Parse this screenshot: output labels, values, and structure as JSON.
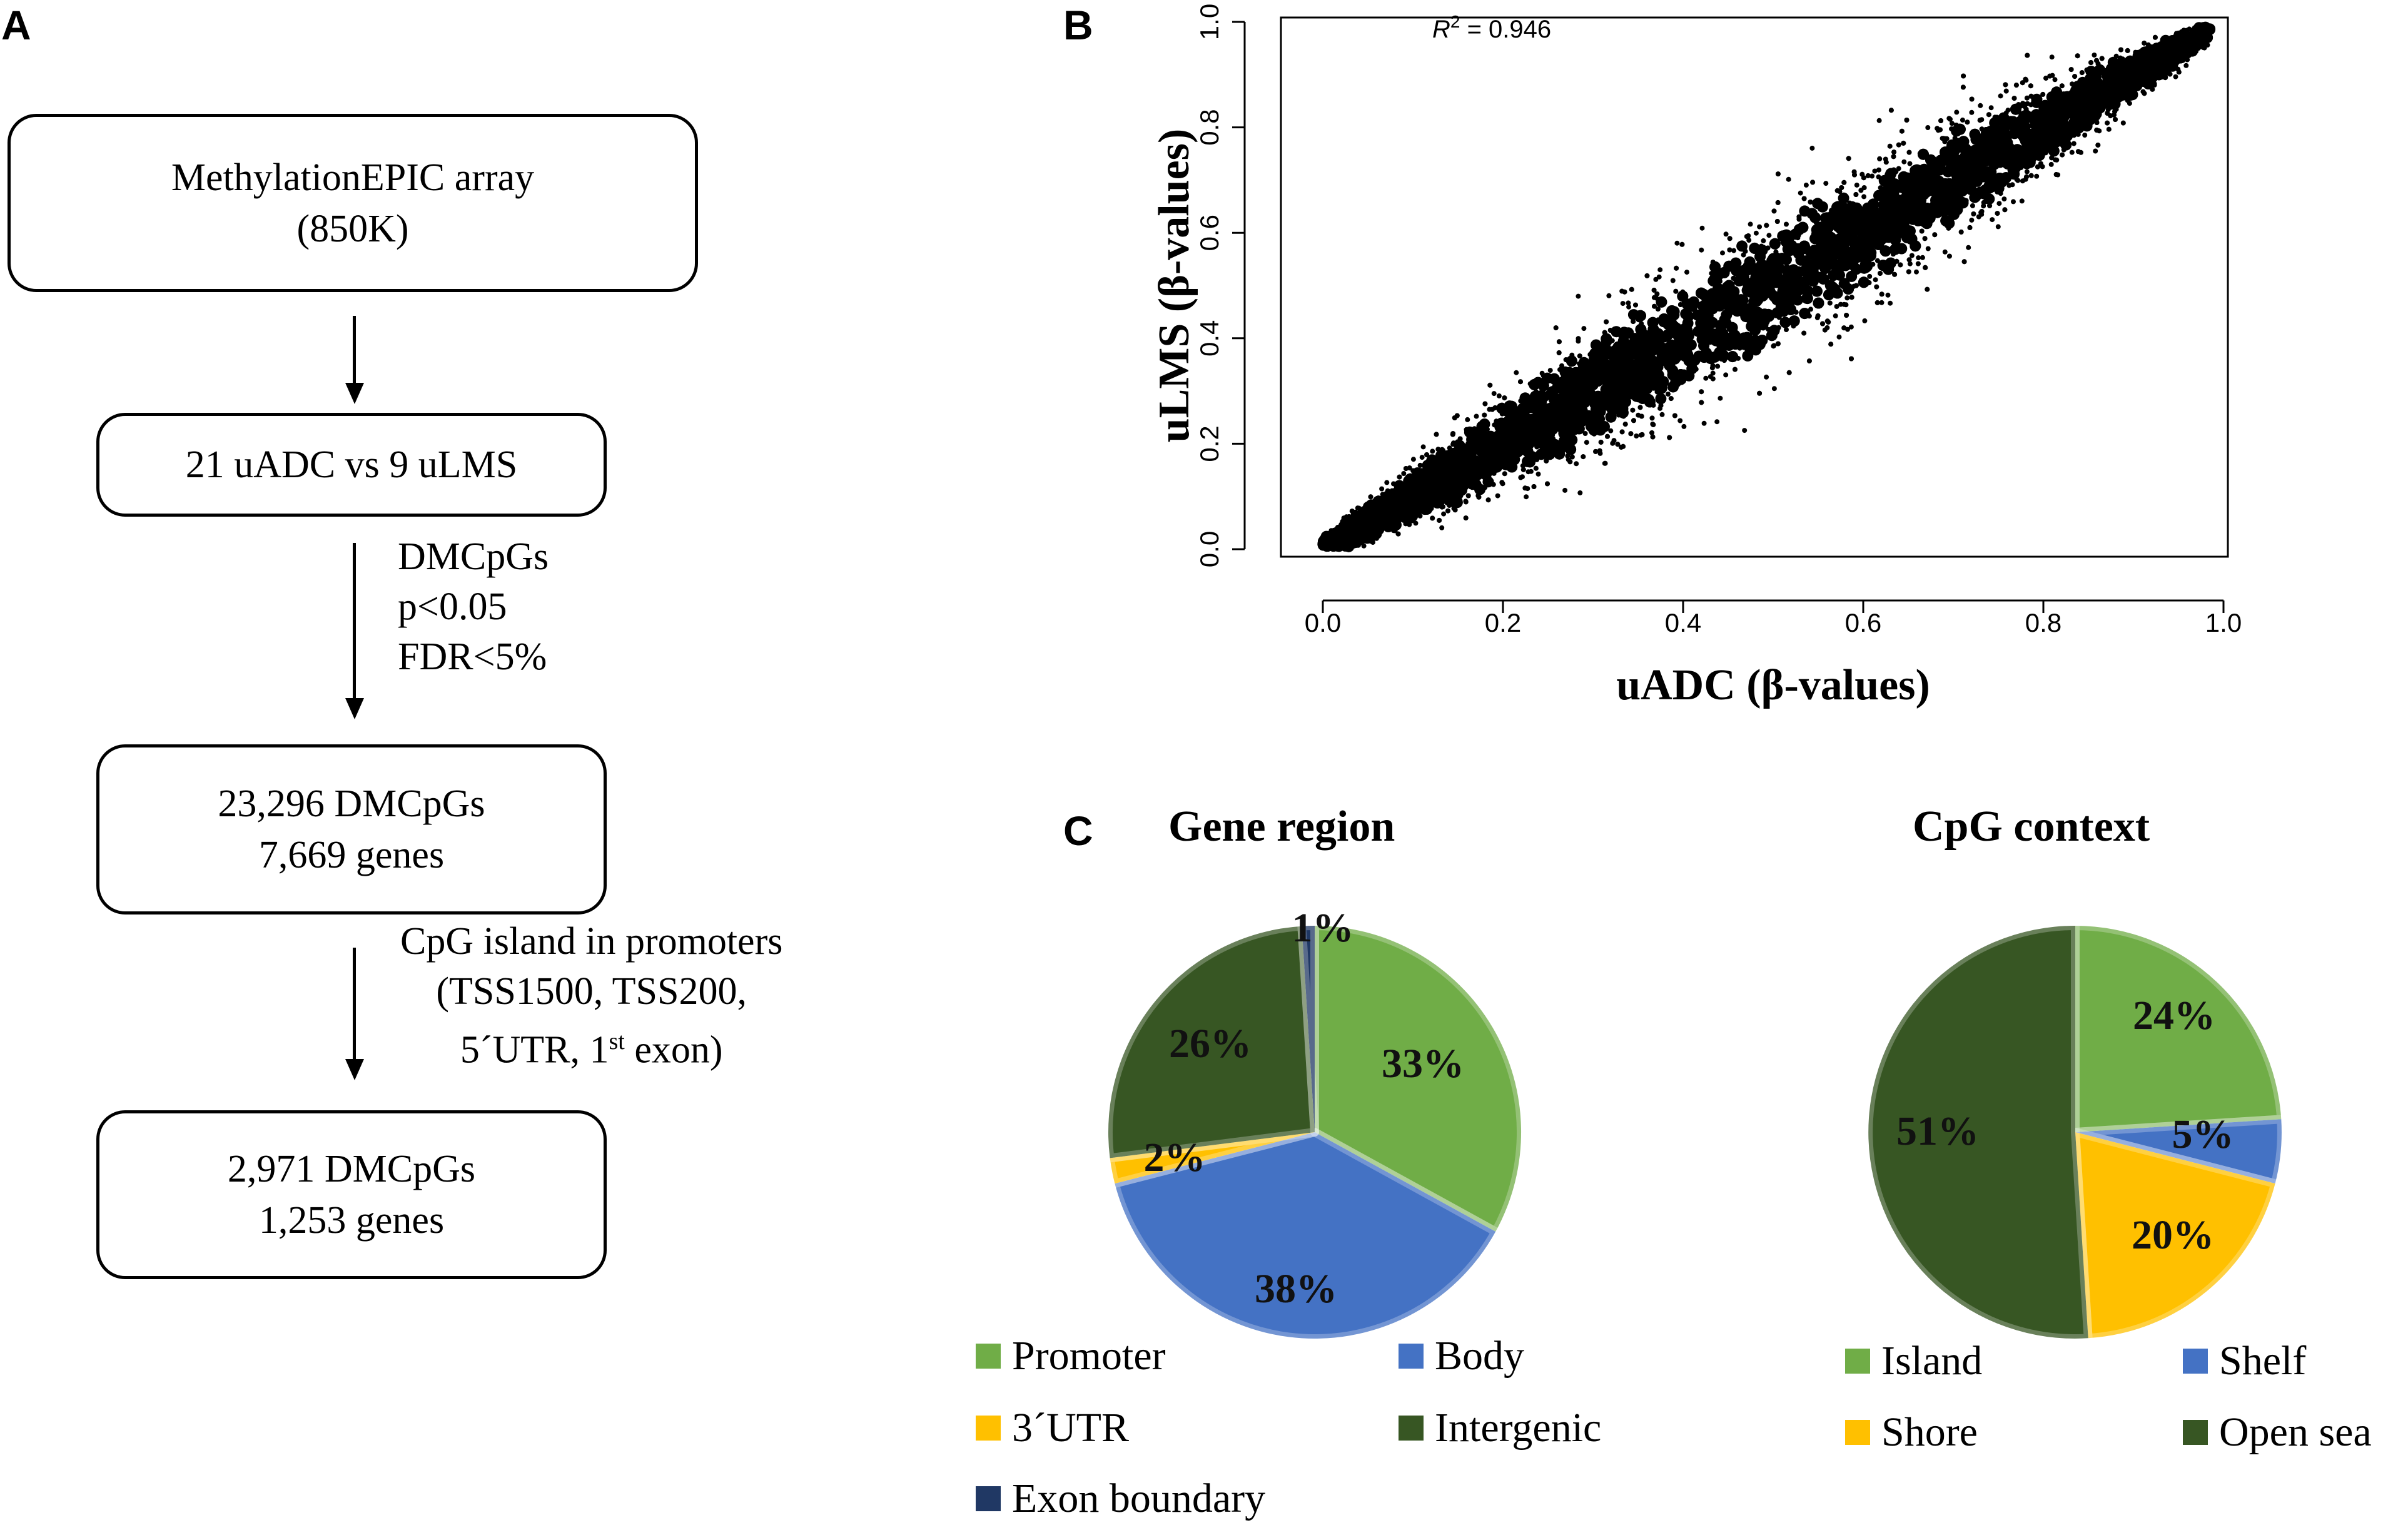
{
  "panels": {
    "a": "A",
    "b": "B",
    "c": "C"
  },
  "flowchart": {
    "box1": {
      "line1": "MethylationEPIC array",
      "line2": "(850K)"
    },
    "box2": {
      "line1": "21 uADC vs 9 uLMS"
    },
    "note1": {
      "line1": "DMCpGs",
      "line2": "p<0.05",
      "line3": "FDR<5%"
    },
    "box3": {
      "line1": "23,296 DMCpGs",
      "line2": "7,669 genes"
    },
    "note2": {
      "line1": "CpG island in promoters",
      "line2": "(TSS1500, TSS200,",
      "line3_pre": "5´UTR, 1",
      "line3_sup": "st",
      "line3_post": " exon)"
    },
    "box4": {
      "line1": "2,971 DMCpGs",
      "line2": "1,253 genes"
    }
  },
  "chart_data": [
    {
      "type": "scatter",
      "title": "",
      "xlabel": "uADC (β-values)",
      "ylabel": "uLMS (β-values)",
      "xlim": [
        0.0,
        1.0
      ],
      "ylim": [
        0.0,
        1.0
      ],
      "xticks": [
        "0.0",
        "0.2",
        "0.4",
        "0.6",
        "0.8",
        "1.0"
      ],
      "yticks": [
        "0.0",
        "0.2",
        "0.4",
        "0.6",
        "0.8",
        "1.0"
      ],
      "annotation": {
        "label": "R",
        "superscript": "2",
        "value": " = 0.946"
      },
      "r_squared": 0.946,
      "points_summary": "dense black point cloud along the diagonal y ≈ x from (0,0) to (0.98,0.98)",
      "grid": false
    },
    {
      "type": "pie",
      "title": "Gene region",
      "slices": [
        {
          "label": "Promoter",
          "value": 33,
          "text": "33%",
          "color": "#70AD47"
        },
        {
          "label": "Body",
          "value": 38,
          "text": "38%",
          "color": "#4472C4"
        },
        {
          "label": "3´UTR",
          "value": 2,
          "text": "2%",
          "color": "#FFC000"
        },
        {
          "label": "Intergenic",
          "value": 26,
          "text": "26%",
          "color": "#375623"
        },
        {
          "label": "Exon boundary",
          "value": 1,
          "text": "1%",
          "color": "#203864"
        }
      ]
    },
    {
      "type": "pie",
      "title": "CpG context",
      "slices": [
        {
          "label": "Island",
          "value": 24,
          "text": "24%",
          "color": "#70AD47"
        },
        {
          "label": "Shelf",
          "value": 5,
          "text": "5%",
          "color": "#4472C4"
        },
        {
          "label": "Shore",
          "value": 20,
          "text": "20%",
          "color": "#FFC000"
        },
        {
          "label": "Open sea",
          "value": 51,
          "text": "51%",
          "color": "#375623"
        }
      ]
    }
  ]
}
